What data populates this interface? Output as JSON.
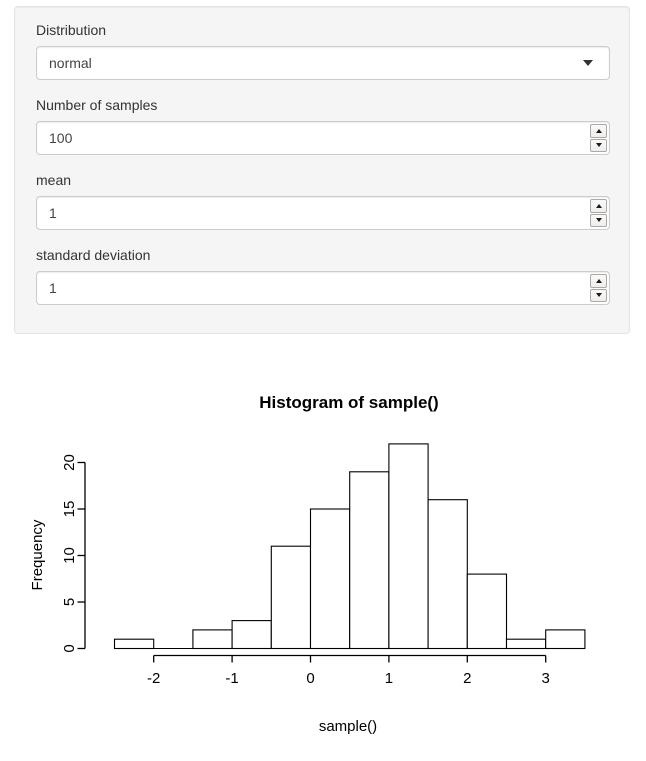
{
  "panel": {
    "distribution": {
      "label": "Distribution",
      "value": "normal"
    },
    "samples": {
      "label": "Number of samples",
      "value": "100"
    },
    "mean": {
      "label": "mean",
      "value": "1"
    },
    "sd": {
      "label": "standard deviation",
      "value": "1"
    }
  },
  "icons": {
    "dropdown_caret": "caret-down",
    "spinner_up": "triangle-up",
    "spinner_down": "triangle-down"
  },
  "colors": {
    "panel_bg": "#f5f5f5",
    "panel_border": "#e3e3e3",
    "input_border": "#cccccc",
    "text": "#333333",
    "bar_fill": "#ffffff",
    "bar_stroke": "#000000",
    "axis": "#000000"
  },
  "chart_data": {
    "type": "bar",
    "subtype": "histogram",
    "title": "Histogram of sample()",
    "xlabel": "sample()",
    "ylabel": "Frequency",
    "bins": {
      "start": -2.5,
      "width": 0.5
    },
    "counts": [
      1,
      0,
      2,
      3,
      11,
      15,
      19,
      22,
      16,
      8,
      1,
      2
    ],
    "bin_edges": [
      -2.5,
      -2,
      -1.5,
      -1,
      -0.5,
      0,
      0.5,
      1,
      1.5,
      2,
      2.5,
      3,
      3.5
    ],
    "x_ticks": [
      -2,
      -1,
      0,
      1,
      2,
      3
    ],
    "y_ticks": [
      0,
      5,
      10,
      15,
      20
    ],
    "xlim": [
      -2.5,
      3.5
    ],
    "ylim": [
      0,
      22
    ],
    "grid": false,
    "legend": false,
    "total_samples": 100
  }
}
